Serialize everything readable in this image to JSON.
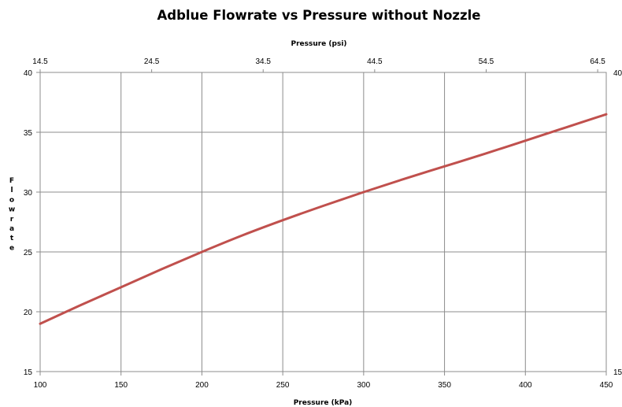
{
  "chart_data": {
    "type": "line",
    "title": "Adblue Flowrate vs Pressure without Nozzle",
    "xlabel": "Pressure (kPa)",
    "x2label": "Pressure (psi)",
    "ylabel": "Flowrate",
    "xlim": [
      100,
      450
    ],
    "ylim": [
      15,
      40
    ],
    "x_ticks": [
      "100",
      "150",
      "200",
      "250",
      "300",
      "350",
      "400",
      "450"
    ],
    "x_tick_values": [
      100,
      150,
      200,
      250,
      300,
      350,
      400,
      450
    ],
    "y_ticks": [
      "15",
      "20",
      "25",
      "30",
      "35",
      "40"
    ],
    "y_tick_values": [
      15,
      20,
      25,
      30,
      35,
      40
    ],
    "x2_ticks": [
      "14.5",
      "24.5",
      "34.5",
      "44.5",
      "54.5",
      "64.5"
    ],
    "x2_tick_values": [
      14.5,
      24.5,
      34.5,
      44.5,
      54.5,
      64.5
    ],
    "x2lim": [
      14.5,
      65.27
    ],
    "y2_ticks": [
      "15",
      "40"
    ],
    "grid": true,
    "series": [
      {
        "color": "#c0504d",
        "x": [
          100,
          125,
          150,
          175,
          200,
          225,
          250,
          275,
          300,
          325,
          350,
          375,
          400,
          425,
          450
        ],
        "y": [
          19.0,
          20.55,
          22.05,
          23.55,
          25.0,
          26.38,
          27.65,
          28.85,
          30.0,
          31.1,
          32.15,
          33.2,
          34.3,
          35.4,
          36.5
        ]
      }
    ]
  }
}
